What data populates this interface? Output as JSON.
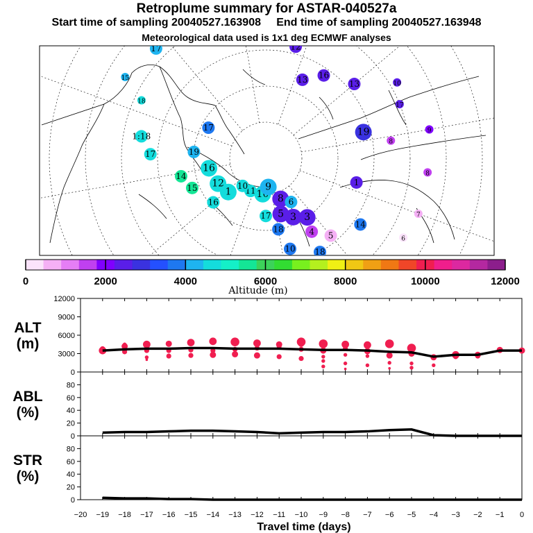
{
  "title": "Retroplume summary for ASTAR-040527a",
  "start_label": "Start time of sampling 20040527.163908",
  "end_label": "End time of sampling 20040527.163948",
  "met_label": "Meteorological data used is 1x1 deg ECMWF analyses",
  "colorbar": {
    "label": "Altitude (m)",
    "ticks": [
      "0",
      "2000",
      "4000",
      "6000",
      "8000",
      "10000",
      "12000"
    ],
    "colors": [
      "#fbe3fb",
      "#f5b0f5",
      "#e57ef5",
      "#c040f0",
      "#8000ff",
      "#5a1ee8",
      "#3a32e0",
      "#2450ff",
      "#1e78f0",
      "#1eb4f0",
      "#14dcdc",
      "#14f0c8",
      "#14e696",
      "#3cd25a",
      "#32dc32",
      "#78f01e",
      "#b4f01e",
      "#f0f014",
      "#f0c814",
      "#f0a014",
      "#f07814",
      "#f04628",
      "#f01e50",
      "#f01e8c",
      "#dc28a0",
      "#b428a0",
      "#8c1e8c"
    ]
  },
  "map_markers": [
    {
      "label": "18",
      "color": "#14dcdc",
      "lon": -95,
      "lat": 52,
      "size": "s"
    },
    {
      "label": "1:18",
      "color": "#14dcdc",
      "lon": -80,
      "lat": 55,
      "size": "m"
    },
    {
      "label": "15",
      "color": "#1eb4f0",
      "lon": -100,
      "lat": 45,
      "size": "s"
    },
    {
      "label": "17",
      "color": "#14dcdc",
      "lon": -72,
      "lat": 58,
      "size": "m"
    },
    {
      "label": "17",
      "color": "#1eb4f0",
      "lon": -115,
      "lat": 47,
      "size": "m"
    },
    {
      "label": "14",
      "color": "#14e696",
      "lon": -58,
      "lat": 66,
      "size": "m"
    },
    {
      "label": "15",
      "color": "#14e696",
      "lon": -48,
      "lat": 68,
      "size": "m"
    },
    {
      "label": "16",
      "color": "#14dcdc",
      "lon": -30,
      "lat": 71,
      "size": "m"
    },
    {
      "label": "19",
      "color": "#1eb4f0",
      "lon": -75,
      "lat": 70,
      "size": "m"
    },
    {
      "label": "16",
      "color": "#14dcdc",
      "lon": -60,
      "lat": 74,
      "size": "l"
    },
    {
      "label": "12",
      "color": "#14dcdc",
      "lon": -42,
      "lat": 75,
      "size": "l"
    },
    {
      "label": "1",
      "color": "#14dcdc",
      "lon": -28,
      "lat": 76,
      "size": "l"
    },
    {
      "label": "18",
      "color": "#1e78f0",
      "lon": 50,
      "lat": 60,
      "size": "m"
    },
    {
      "label": "18",
      "color": "#1e78f0",
      "lon": 30,
      "lat": 70,
      "size": "m"
    },
    {
      "label": "17",
      "color": "#14dcdc",
      "lon": 20,
      "lat": 74,
      "size": "m"
    },
    {
      "label": "10",
      "color": "#1e78f0",
      "lon": 35,
      "lat": 64,
      "size": "m"
    },
    {
      "label": "14",
      "color": "#1e78f0",
      "lon": 75,
      "lat": 58,
      "size": "m"
    },
    {
      "label": "17",
      "color": "#1e78f0",
      "lon": -98,
      "lat": 72,
      "size": "m"
    },
    {
      "label": "11",
      "color": "#14dcdc",
      "lon": -5,
      "lat": 80,
      "size": "m"
    },
    {
      "label": "10",
      "color": "#14dcdc",
      "lon": -20,
      "lat": 80,
      "size": "m"
    },
    {
      "label": "10",
      "color": "#14dcdc",
      "lon": 15,
      "lat": 80,
      "size": "l"
    },
    {
      "label": "9",
      "color": "#1eb4f0",
      "lon": 25,
      "lat": 82,
      "size": "l"
    },
    {
      "label": "8",
      "color": "#5a1ee8",
      "lon": 40,
      "lat": 78,
      "size": "l"
    },
    {
      "label": "5",
      "color": "#5a1ee8",
      "lon": 35,
      "lat": 74,
      "size": "l"
    },
    {
      "label": "3",
      "color": "#5a1ee8",
      "lon": 45,
      "lat": 72,
      "size": "l"
    },
    {
      "label": "3",
      "color": "#5a1ee8",
      "lon": 55,
      "lat": 70,
      "size": "l"
    },
    {
      "label": "6",
      "color": "#1eb4f0",
      "lon": 50,
      "lat": 76,
      "size": "m"
    },
    {
      "label": "4",
      "color": "#c040f0",
      "lon": 52,
      "lat": 66,
      "size": "m"
    },
    {
      "label": "5",
      "color": "#f5b0f5",
      "lon": 60,
      "lat": 62,
      "size": "m"
    },
    {
      "label": "1",
      "color": "#5a1ee8",
      "lon": 95,
      "lat": 64,
      "size": "m"
    },
    {
      "label": "19",
      "color": "#3a32e0",
      "lon": 125,
      "lat": 62,
      "size": "l"
    },
    {
      "label": "8",
      "color": "#c040f0",
      "lon": 118,
      "lat": 55,
      "size": "s"
    },
    {
      "label": "13",
      "color": "#5a1ee8",
      "lon": 150,
      "lat": 58,
      "size": "m"
    },
    {
      "label": "16",
      "color": "#5a1ee8",
      "lon": 165,
      "lat": 62,
      "size": "m"
    },
    {
      "label": "13",
      "color": "#5a1ee8",
      "lon": 175,
      "lat": 66,
      "size": "m"
    },
    {
      "label": "12",
      "color": "#5a1ee8",
      "lon": -175,
      "lat": 58,
      "size": "m"
    },
    {
      "label": "10",
      "color": "#5a1ee8",
      "lon": 140,
      "lat": 48,
      "size": "s"
    },
    {
      "label": "17",
      "color": "#5a1ee8",
      "lon": 132,
      "lat": 50,
      "size": "s"
    },
    {
      "label": "9",
      "color": "#8000ff",
      "lon": 120,
      "lat": 44,
      "size": "s"
    },
    {
      "label": "8",
      "color": "#c040f0",
      "lon": 105,
      "lat": 45,
      "size": "s"
    },
    {
      "label": "7",
      "color": "#f5b0f5",
      "lon": 90,
      "lat": 45,
      "size": "s"
    },
    {
      "label": "6",
      "color": "#fbe3fb",
      "lon": 80,
      "lat": 46,
      "size": "s"
    }
  ],
  "chart_data": [
    {
      "type": "scatter",
      "ylabel": "ALT\n(m)",
      "ylim": [
        0,
        12000
      ],
      "yticks": [
        "0",
        "3000",
        "6000",
        "9000",
        "12000"
      ],
      "x": [
        -19,
        -18,
        -17,
        -16,
        -15,
        -14,
        -13,
        -12,
        -11,
        -10,
        -9,
        -8,
        -7,
        -6,
        -5,
        -4,
        -3,
        -2,
        -1,
        0
      ],
      "mean_line": [
        3500,
        3700,
        3800,
        3800,
        3900,
        3900,
        3800,
        3800,
        3800,
        3700,
        3600,
        3600,
        3500,
        3300,
        3200,
        2500,
        2800,
        2800,
        3500,
        3500
      ],
      "points": [
        [
          -19,
          3500,
          6
        ],
        [
          -19,
          3300,
          4
        ],
        [
          -19,
          3800,
          4
        ],
        [
          -18,
          4200,
          5
        ],
        [
          -18,
          3300,
          4
        ],
        [
          -18,
          4500,
          3
        ],
        [
          -17,
          4500,
          6
        ],
        [
          -17,
          3500,
          4
        ],
        [
          -17,
          2400,
          3
        ],
        [
          -17,
          2000,
          2
        ],
        [
          -16,
          4600,
          5
        ],
        [
          -16,
          2600,
          4
        ],
        [
          -16,
          3500,
          4
        ],
        [
          -15,
          4800,
          6
        ],
        [
          -15,
          2700,
          4
        ],
        [
          -15,
          3600,
          4
        ],
        [
          -14,
          5000,
          6
        ],
        [
          -14,
          2800,
          5
        ],
        [
          -14,
          3500,
          4
        ],
        [
          -13,
          4900,
          7
        ],
        [
          -13,
          2900,
          5
        ],
        [
          -13,
          3700,
          4
        ],
        [
          -12,
          4700,
          6
        ],
        [
          -12,
          2700,
          5
        ],
        [
          -12,
          3900,
          4
        ],
        [
          -11,
          4500,
          5
        ],
        [
          -11,
          2500,
          4
        ],
        [
          -11,
          4200,
          4
        ],
        [
          -10,
          4900,
          7
        ],
        [
          -10,
          2200,
          4
        ],
        [
          -10,
          3700,
          4
        ],
        [
          -10,
          4600,
          5
        ],
        [
          -9,
          4600,
          7
        ],
        [
          -9,
          3500,
          5
        ],
        [
          -9,
          1800,
          3
        ],
        [
          -9,
          2500,
          3
        ],
        [
          -9,
          900,
          3
        ],
        [
          -8,
          4500,
          6
        ],
        [
          -8,
          3800,
          4
        ],
        [
          -8,
          1400,
          3
        ],
        [
          -8,
          2800,
          3
        ],
        [
          -8,
          500,
          2
        ],
        [
          -7,
          4400,
          6
        ],
        [
          -7,
          3400,
          5
        ],
        [
          -7,
          1100,
          3
        ],
        [
          -7,
          2600,
          3
        ],
        [
          -6,
          4600,
          7
        ],
        [
          -6,
          2700,
          5
        ],
        [
          -6,
          1500,
          3
        ],
        [
          -6,
          600,
          2
        ],
        [
          -5,
          3900,
          7
        ],
        [
          -5,
          3000,
          5
        ],
        [
          -5,
          700,
          3
        ],
        [
          -5,
          1400,
          3
        ],
        [
          -4,
          2400,
          5
        ],
        [
          -4,
          1100,
          3
        ],
        [
          -3,
          2800,
          6
        ],
        [
          -3,
          2500,
          4
        ],
        [
          -2,
          2800,
          5
        ],
        [
          -2,
          2600,
          4
        ],
        [
          -1,
          3600,
          5
        ],
        [
          0,
          3500,
          5
        ]
      ]
    },
    {
      "type": "line",
      "ylabel": "ABL\n(%)",
      "ylim": [
        0,
        100
      ],
      "yticks": [
        "0",
        "20",
        "40",
        "60",
        "80"
      ],
      "x": [
        -19,
        -18,
        -17,
        -16,
        -15,
        -14,
        -13,
        -12,
        -11,
        -10,
        -9,
        -8,
        -7,
        -6,
        -5,
        -4,
        -3,
        -2,
        -1,
        0
      ],
      "values": [
        5,
        6,
        6,
        7,
        8,
        8,
        7,
        6,
        4,
        5,
        6,
        6,
        7,
        9,
        10,
        1,
        0,
        0,
        0,
        0
      ]
    },
    {
      "type": "line",
      "ylabel": "STR\n(%)",
      "ylim": [
        0,
        100
      ],
      "yticks": [
        "0",
        "20",
        "40",
        "60",
        "80"
      ],
      "xlabel": "Travel time (days)",
      "x": [
        -19,
        -18,
        -17,
        -16,
        -15,
        -14,
        -13,
        -12,
        -11,
        -10,
        -9,
        -8,
        -7,
        -6,
        -5,
        -4,
        -3,
        -2,
        -1,
        0
      ],
      "values": [
        3,
        2,
        2,
        1,
        1,
        0,
        0,
        0,
        0,
        0,
        0,
        0,
        0,
        0,
        0,
        0,
        0,
        0,
        0,
        0
      ],
      "xticks": [
        "−20",
        "−19",
        "−18",
        "−17",
        "−16",
        "−15",
        "−14",
        "−13",
        "−12",
        "−11",
        "−10",
        "−9",
        "−8",
        "−7",
        "−6",
        "−5",
        "−4",
        "−3",
        "−2",
        "−1",
        "0"
      ]
    }
  ]
}
